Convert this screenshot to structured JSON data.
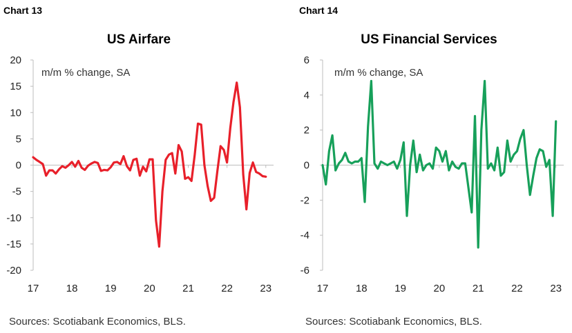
{
  "chart_data": [
    {
      "type": "line",
      "label": "Chart 13",
      "title": "US Airfare",
      "unit_note": "m/m % change, SA",
      "source": "Sources: Scotiabank Economics, BLS.",
      "color": "#e8202a",
      "ylim": [
        -20,
        20
      ],
      "yticks": [
        20,
        15,
        10,
        5,
        0,
        -5,
        -10,
        -15,
        -20
      ],
      "xlim": [
        2017,
        2023.2
      ],
      "xticks": [
        {
          "v": 2017,
          "label": "17"
        },
        {
          "v": 2018,
          "label": "18"
        },
        {
          "v": 2019,
          "label": "19"
        },
        {
          "v": 2020,
          "label": "20"
        },
        {
          "v": 2021,
          "label": "21"
        },
        {
          "v": 2022,
          "label": "22"
        },
        {
          "v": 2023,
          "label": "23"
        }
      ],
      "x": [
        2017.0,
        2017.083,
        2017.167,
        2017.25,
        2017.333,
        2017.417,
        2017.5,
        2017.583,
        2017.667,
        2017.75,
        2017.833,
        2017.917,
        2018.0,
        2018.083,
        2018.167,
        2018.25,
        2018.333,
        2018.417,
        2018.5,
        2018.583,
        2018.667,
        2018.75,
        2018.833,
        2018.917,
        2019.0,
        2019.083,
        2019.167,
        2019.25,
        2019.333,
        2019.417,
        2019.5,
        2019.583,
        2019.667,
        2019.75,
        2019.833,
        2019.917,
        2020.0,
        2020.083,
        2020.167,
        2020.25,
        2020.333,
        2020.417,
        2020.5,
        2020.583,
        2020.667,
        2020.75,
        2020.833,
        2020.917,
        2021.0,
        2021.083,
        2021.167,
        2021.25,
        2021.333,
        2021.417,
        2021.5,
        2021.583,
        2021.667,
        2021.75,
        2021.833,
        2021.917,
        2022.0,
        2022.083,
        2022.167,
        2022.25,
        2022.333,
        2022.417,
        2022.5,
        2022.583,
        2022.667,
        2022.75,
        2022.833,
        2022.917,
        2023.0
      ],
      "y": [
        1.5,
        1.0,
        0.6,
        0.2,
        -2.0,
        -1.0,
        -1.0,
        -1.6,
        -0.8,
        -0.2,
        -0.5,
        0.0,
        0.6,
        -0.3,
        0.8,
        -0.5,
        -0.9,
        -0.1,
        0.3,
        0.6,
        0.4,
        -1.1,
        -0.9,
        -1.0,
        -0.4,
        0.5,
        0.6,
        0.2,
        1.7,
        -0.2,
        -1.0,
        1.0,
        1.2,
        -2.0,
        -0.3,
        -1.2,
        1.1,
        1.1,
        -10.5,
        -15.5,
        -5.0,
        1.0,
        2.0,
        2.3,
        -1.6,
        3.8,
        2.6,
        -2.6,
        -2.3,
        -3.0,
        2.0,
        7.9,
        7.7,
        0.0,
        -4.0,
        -6.8,
        -6.2,
        -1.2,
        3.6,
        2.9,
        0.5,
        7.0,
        12.0,
        15.7,
        11.0,
        -1.8,
        -8.4,
        -1.5,
        0.5,
        -1.3,
        -1.6,
        -2.1,
        -2.2
      ]
    },
    {
      "type": "line",
      "label": "Chart 14",
      "title": "US Financial Services",
      "unit_note": "m/m % change, SA",
      "source": "Sources: Scotiabank Economics, BLS.",
      "color": "#17a05a",
      "ylim": [
        -6,
        6
      ],
      "yticks": [
        6,
        4,
        2,
        0,
        -2,
        -4,
        -6
      ],
      "xlim": [
        2017,
        2023.2
      ],
      "xticks": [
        {
          "v": 2017,
          "label": "17"
        },
        {
          "v": 2018,
          "label": "18"
        },
        {
          "v": 2019,
          "label": "19"
        },
        {
          "v": 2020,
          "label": "20"
        },
        {
          "v": 2021,
          "label": "21"
        },
        {
          "v": 2022,
          "label": "22"
        },
        {
          "v": 2023,
          "label": "23"
        }
      ],
      "x": [
        2017.0,
        2017.083,
        2017.167,
        2017.25,
        2017.333,
        2017.417,
        2017.5,
        2017.583,
        2017.667,
        2017.75,
        2017.833,
        2017.917,
        2018.0,
        2018.083,
        2018.167,
        2018.25,
        2018.333,
        2018.417,
        2018.5,
        2018.583,
        2018.667,
        2018.75,
        2018.833,
        2018.917,
        2019.0,
        2019.083,
        2019.167,
        2019.25,
        2019.333,
        2019.417,
        2019.5,
        2019.583,
        2019.667,
        2019.75,
        2019.833,
        2019.917,
        2020.0,
        2020.083,
        2020.167,
        2020.25,
        2020.333,
        2020.417,
        2020.5,
        2020.583,
        2020.667,
        2020.75,
        2020.833,
        2020.917,
        2021.0,
        2021.083,
        2021.167,
        2021.25,
        2021.333,
        2021.417,
        2021.5,
        2021.583,
        2021.667,
        2021.75,
        2021.833,
        2021.917,
        2022.0,
        2022.083,
        2022.167,
        2022.25,
        2022.333,
        2022.417,
        2022.5,
        2022.583,
        2022.667,
        2022.75,
        2022.833,
        2022.917,
        2023.0
      ],
      "y": [
        0.0,
        -1.1,
        0.8,
        1.7,
        -0.3,
        0.1,
        0.3,
        0.7,
        0.2,
        0.1,
        0.2,
        0.2,
        0.4,
        -2.1,
        2.2,
        4.8,
        0.1,
        -0.2,
        0.2,
        0.1,
        0.0,
        0.1,
        0.2,
        -0.2,
        0.3,
        1.3,
        -2.9,
        0.0,
        1.4,
        -0.4,
        0.6,
        -0.3,
        0.0,
        0.1,
        -0.2,
        1.0,
        0.8,
        0.2,
        0.8,
        -0.3,
        0.2,
        -0.1,
        -0.2,
        0.1,
        0.1,
        -1.3,
        -2.7,
        2.8,
        -4.7,
        2.0,
        4.8,
        -0.2,
        0.1,
        -0.3,
        1.0,
        -0.6,
        -0.4,
        1.4,
        0.2,
        0.6,
        0.8,
        1.5,
        2.0,
        0.0,
        -1.7,
        -0.6,
        0.4,
        0.9,
        0.8,
        -0.1,
        0.3,
        -2.9,
        2.5
      ]
    }
  ]
}
